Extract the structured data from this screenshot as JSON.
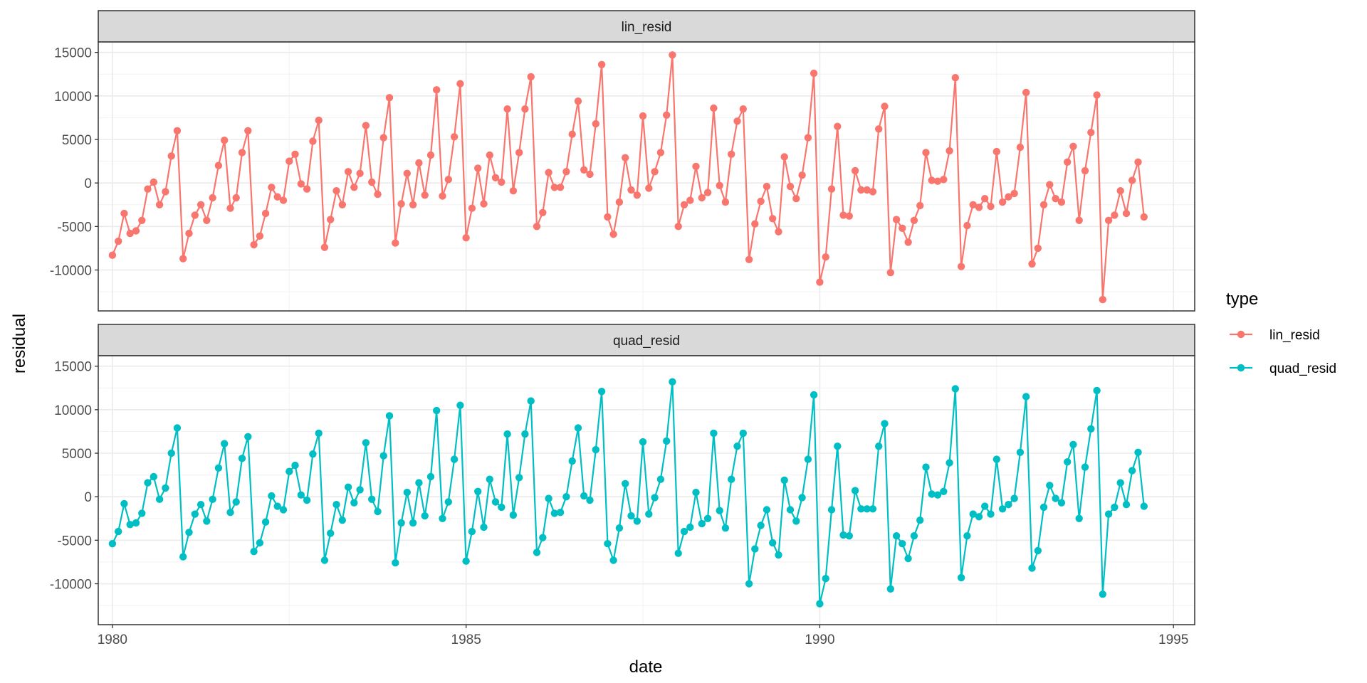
{
  "chart_data": {
    "type": "line",
    "facet_by": "type",
    "xlabel": "date",
    "ylabel": "residual",
    "xlim": [
      1979.8,
      1995.3
    ],
    "ylim": [
      -14700,
      16200
    ],
    "x_ticks": [
      1980,
      1985,
      1990,
      1995
    ],
    "y_ticks": [
      -10000,
      -5000,
      0,
      5000,
      10000,
      15000
    ],
    "grid": true,
    "legend": {
      "title": "type",
      "position": "right"
    },
    "x_start": 1980,
    "x_step_months": 1,
    "series": [
      {
        "name": "lin_resid",
        "color": "#F8766D",
        "values": [
          -8300,
          -6700,
          -3500,
          -5800,
          -5500,
          -4300,
          -700,
          100,
          -2500,
          -1000,
          3100,
          6000,
          -8700,
          -5800,
          -3700,
          -2500,
          -4300,
          -1700,
          2000,
          4900,
          -2900,
          -1700,
          3500,
          6000,
          -7100,
          -6100,
          -3500,
          -500,
          -1600,
          -2000,
          2500,
          3300,
          -100,
          -700,
          4800,
          7200,
          -7400,
          -4200,
          -900,
          -2500,
          1300,
          -500,
          1100,
          6600,
          100,
          -1300,
          5200,
          9800,
          -6900,
          -2400,
          1100,
          -2500,
          2300,
          -1400,
          3200,
          10700,
          -1500,
          400,
          5300,
          11400,
          -6300,
          -2900,
          1700,
          -2400,
          3200,
          600,
          100,
          8500,
          -900,
          3500,
          8500,
          12200,
          -5000,
          -3400,
          1200,
          -500,
          -500,
          1300,
          5600,
          9400,
          1500,
          1000,
          6800,
          13600,
          -3900,
          -5900,
          -2200,
          2900,
          -800,
          -1400,
          7700,
          -600,
          1300,
          3500,
          7800,
          14700,
          -5000,
          -2500,
          -2000,
          1900,
          -1700,
          -1100,
          8600,
          -300,
          -2200,
          3300,
          7100,
          8500,
          -8800,
          -4700,
          -2100,
          -400,
          -4100,
          -5600,
          3000,
          -400,
          -1800,
          900,
          5200,
          12600,
          -11400,
          -8500,
          -700,
          6500,
          -3700,
          -3800,
          1400,
          -800,
          -800,
          -1000,
          6200,
          8800,
          -10300,
          -4200,
          -5200,
          -6800,
          -4300,
          -2600,
          3500,
          300,
          200,
          400,
          3700,
          12100,
          -9600,
          -4900,
          -2500,
          -2800,
          -1800,
          -2700,
          3600,
          -2200,
          -1600,
          -1200,
          4100,
          10400,
          -9300,
          -7500,
          -2500,
          -200,
          -1800,
          -2200,
          2400,
          4200,
          -4300,
          1400,
          5800,
          10100,
          -13400,
          -4300,
          -3700,
          -900,
          -3500,
          300,
          2400,
          -3900
        ]
      },
      {
        "name": "quad_resid",
        "color": "#00BFC4",
        "values": [
          -5400,
          -4000,
          -800,
          -3200,
          -3000,
          -1900,
          1600,
          2300,
          -300,
          1000,
          5000,
          7900,
          -6900,
          -4100,
          -2000,
          -900,
          -2800,
          -300,
          3300,
          6100,
          -1800,
          -600,
          4400,
          6900,
          -6300,
          -5300,
          -2900,
          100,
          -1100,
          -1500,
          2900,
          3600,
          200,
          -400,
          4900,
          7300,
          -7300,
          -4200,
          -900,
          -2700,
          1100,
          -700,
          800,
          6200,
          -300,
          -1700,
          4700,
          9300,
          -7600,
          -3000,
          500,
          -3000,
          1600,
          -2200,
          2300,
          9900,
          -2500,
          -600,
          4300,
          10500,
          -7400,
          -4000,
          600,
          -3500,
          2000,
          -600,
          -1200,
          7200,
          -2100,
          2200,
          7200,
          11000,
          -6400,
          -4700,
          -200,
          -1900,
          -1800,
          0,
          4100,
          7900,
          100,
          -400,
          5400,
          12100,
          -5400,
          -7300,
          -3600,
          1500,
          -2200,
          -2800,
          6300,
          -2000,
          -100,
          2000,
          6400,
          13200,
          -6500,
          -4000,
          -3500,
          500,
          -3100,
          -2500,
          7300,
          -1600,
          -3600,
          2000,
          5800,
          7300,
          -10000,
          -6000,
          -3300,
          -1500,
          -5300,
          -6700,
          1900,
          -1500,
          -2800,
          -100,
          4300,
          11700,
          -12300,
          -9400,
          -1500,
          5800,
          -4400,
          -4500,
          700,
          -1400,
          -1400,
          -1400,
          5800,
          8400,
          -10600,
          -4500,
          -5400,
          -7100,
          -4500,
          -2700,
          3400,
          300,
          200,
          600,
          3900,
          12400,
          -9300,
          -4500,
          -2000,
          -2300,
          -1100,
          -2000,
          4300,
          -1400,
          -900,
          -200,
          5100,
          11500,
          -8200,
          -6200,
          -1200,
          1300,
          -200,
          -700,
          4000,
          6000,
          -2500,
          3400,
          7800,
          12200,
          -11200,
          -2000,
          -1200,
          1600,
          -900,
          3000,
          5100,
          -1100
        ]
      }
    ]
  }
}
